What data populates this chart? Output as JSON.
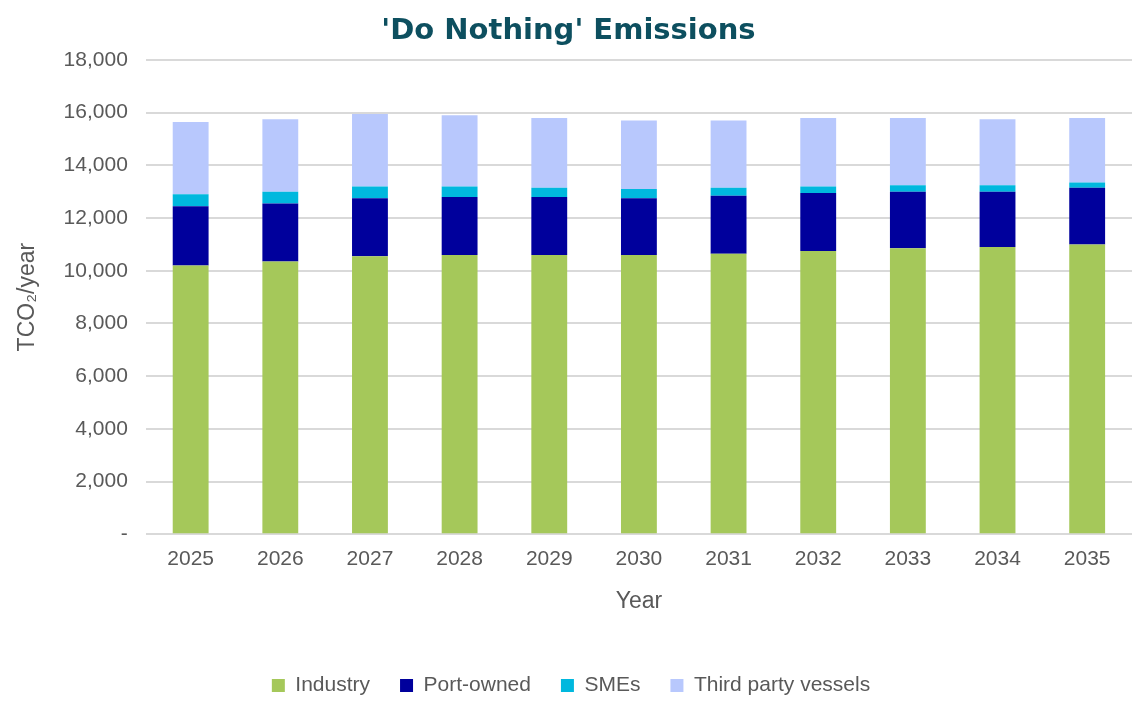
{
  "chart_data": {
    "type": "bar",
    "title": "'Do Nothing' Emissions",
    "xlabel": "Year",
    "ylabel": "TCO₂/year",
    "stacked": true,
    "grid": "y",
    "legend": "bottom",
    "categories": [
      "2025",
      "2026",
      "2027",
      "2028",
      "2029",
      "2030",
      "2031",
      "2032",
      "2033",
      "2034",
      "2035"
    ],
    "series": [
      {
        "name": "Industry",
        "color": "#a5c85a",
        "values": [
          10200,
          10350,
          10550,
          10600,
          10600,
          10600,
          10650,
          10750,
          10850,
          10900,
          11000
        ]
      },
      {
        "name": "Port-owned",
        "color": "#00009c",
        "values": [
          2250,
          2200,
          2200,
          2200,
          2200,
          2150,
          2200,
          2200,
          2150,
          2100,
          2150
        ]
      },
      {
        "name": "SMEs",
        "color": "#00b8de",
        "values": [
          450,
          450,
          450,
          400,
          350,
          350,
          300,
          250,
          250,
          250,
          200
        ]
      },
      {
        "name": "Third party vessels",
        "color": "#b8c8fd",
        "values": [
          2750,
          2750,
          2750,
          2700,
          2650,
          2600,
          2550,
          2600,
          2550,
          2500,
          2450
        ]
      }
    ],
    "ylim": [
      0,
      18000
    ],
    "yticks": [
      {
        "value": 0,
        "label": "-"
      },
      {
        "value": 2000,
        "label": "2,000"
      },
      {
        "value": 4000,
        "label": "4,000"
      },
      {
        "value": 6000,
        "label": "6,000"
      },
      {
        "value": 8000,
        "label": "8,000"
      },
      {
        "value": 10000,
        "label": "10,000"
      },
      {
        "value": 12000,
        "label": "12,000"
      },
      {
        "value": 14000,
        "label": "14,000"
      },
      {
        "value": 16000,
        "label": "16,000"
      },
      {
        "value": 18000,
        "label": "18,000"
      }
    ]
  }
}
